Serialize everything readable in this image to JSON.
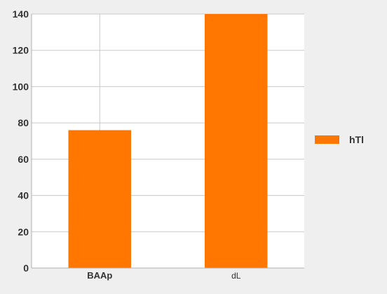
{
  "chart_data": {
    "type": "bar",
    "categories": [
      "BAAp",
      "dL"
    ],
    "category_label_weights": [
      "bold",
      "normal"
    ],
    "series": [
      {
        "name": "hTl",
        "values": [
          76,
          140
        ],
        "color": "#ff7700"
      }
    ],
    "title": "",
    "xlabel": "",
    "ylabel": "",
    "ylim": [
      0,
      140
    ],
    "yticks": [
      0,
      20,
      40,
      60,
      80,
      100,
      120,
      140
    ],
    "grid": true,
    "legend": "right",
    "colors": {
      "background": "#efefef",
      "plot_background": "#ffffff",
      "grid": "#c8c8c8",
      "bar": "#ff7700",
      "text": "#333333"
    }
  }
}
